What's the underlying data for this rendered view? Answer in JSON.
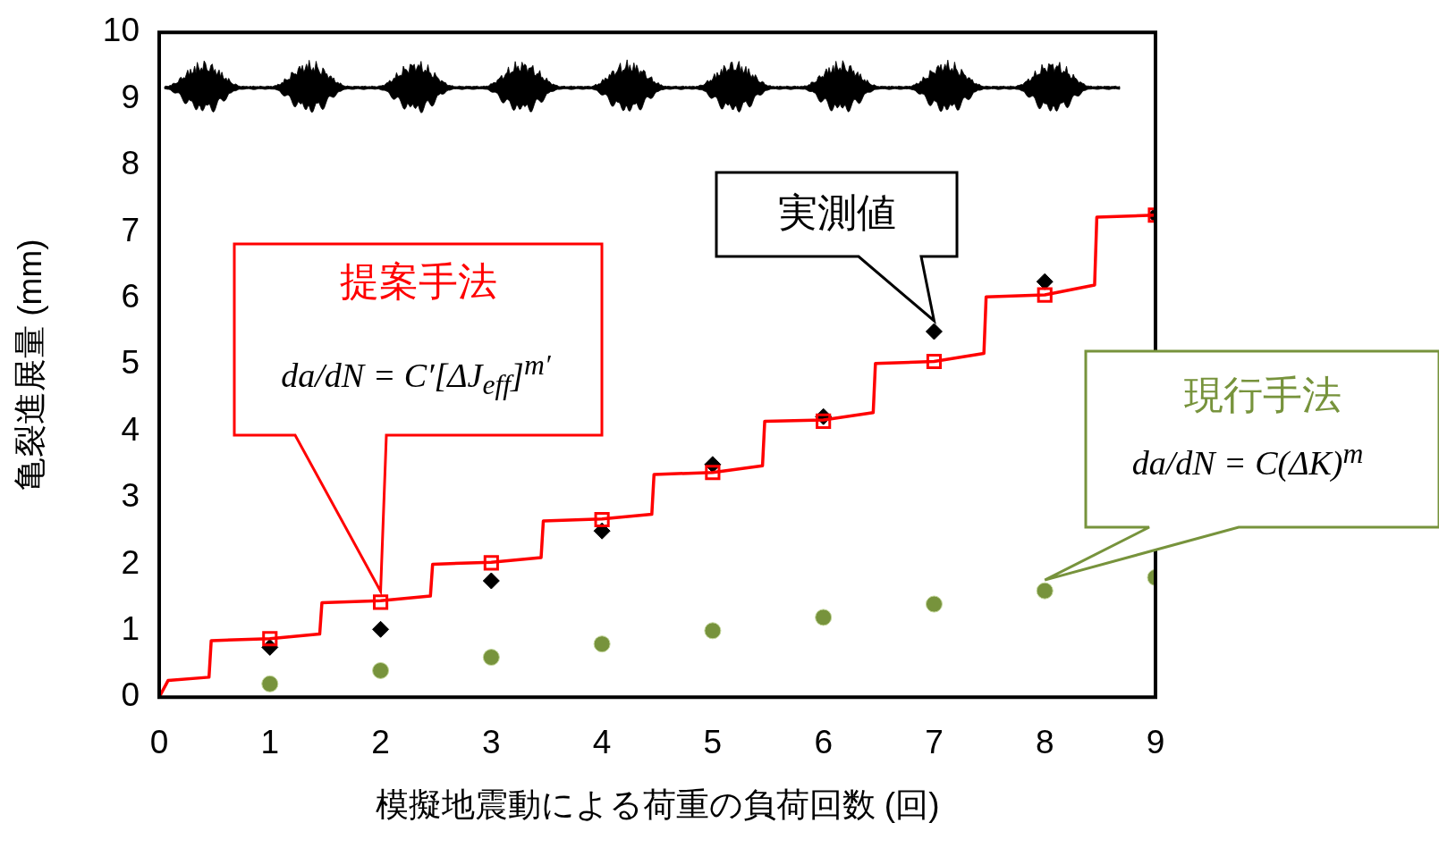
{
  "chart_data": {
    "type": "line",
    "xlabel": "模擬地震動による荷重の負荷回数 (回)",
    "ylabel": "亀裂進展量 (mm)",
    "xlim": [
      0,
      9
    ],
    "xticks": [
      0,
      1,
      2,
      3,
      4,
      5,
      6,
      7,
      8,
      9
    ],
    "ylim": [
      0,
      10
    ],
    "yticks": [
      0,
      1,
      2,
      3,
      4,
      5,
      6,
      7,
      8,
      9,
      10
    ],
    "grid": false,
    "legend": false,
    "series": [
      {
        "color": "#ff0000",
        "marker": "none",
        "x": [
          0,
          0.08,
          0.45,
          0.47,
          1,
          1.45,
          1.47,
          2,
          2.45,
          2.47,
          3,
          3.45,
          3.47,
          4,
          4.45,
          4.47,
          5,
          5.45,
          5.47,
          6,
          6.45,
          6.47,
          7,
          7.45,
          7.47,
          8,
          8.45,
          8.47,
          9
        ],
        "values": [
          0,
          0.25,
          0.3,
          0.85,
          0.88,
          0.95,
          1.42,
          1.45,
          1.52,
          2.0,
          2.03,
          2.1,
          2.65,
          2.68,
          2.75,
          3.35,
          3.38,
          3.48,
          4.15,
          4.17,
          4.28,
          5.02,
          5.05,
          5.17,
          6.02,
          6.05,
          6.2,
          7.22,
          7.25
        ]
      },
      {
        "type": "scatter",
        "name": "実測値",
        "color": "#000000",
        "marker": "diamond",
        "x": [
          1,
          2,
          3,
          4,
          5,
          6,
          7,
          8,
          9
        ],
        "values": [
          0.75,
          1.02,
          1.75,
          2.5,
          3.5,
          4.22,
          5.5,
          6.25,
          7.25
        ]
      },
      {
        "type": "scatter",
        "name": "提案手法",
        "color": "#ff0000",
        "marker": "square",
        "x": [
          1,
          2,
          3,
          4,
          5,
          6,
          7,
          8,
          9
        ],
        "values": [
          0.88,
          1.43,
          2.02,
          2.67,
          3.38,
          4.15,
          5.05,
          6.05,
          7.25
        ]
      },
      {
        "type": "scatter",
        "name": "現行手法",
        "color": "#77933c",
        "marker": "circle",
        "x": [
          1,
          2,
          3,
          4,
          5,
          6,
          7,
          8,
          9
        ],
        "values": [
          0.2,
          0.4,
          0.6,
          0.8,
          1.0,
          1.2,
          1.4,
          1.6,
          1.8
        ]
      }
    ],
    "annotations": [
      "da/dN = C′[ΔJ$_{eff}$]$^{m′}$",
      "da/dN = C(ΔK)$^{m}$"
    ]
  }
}
